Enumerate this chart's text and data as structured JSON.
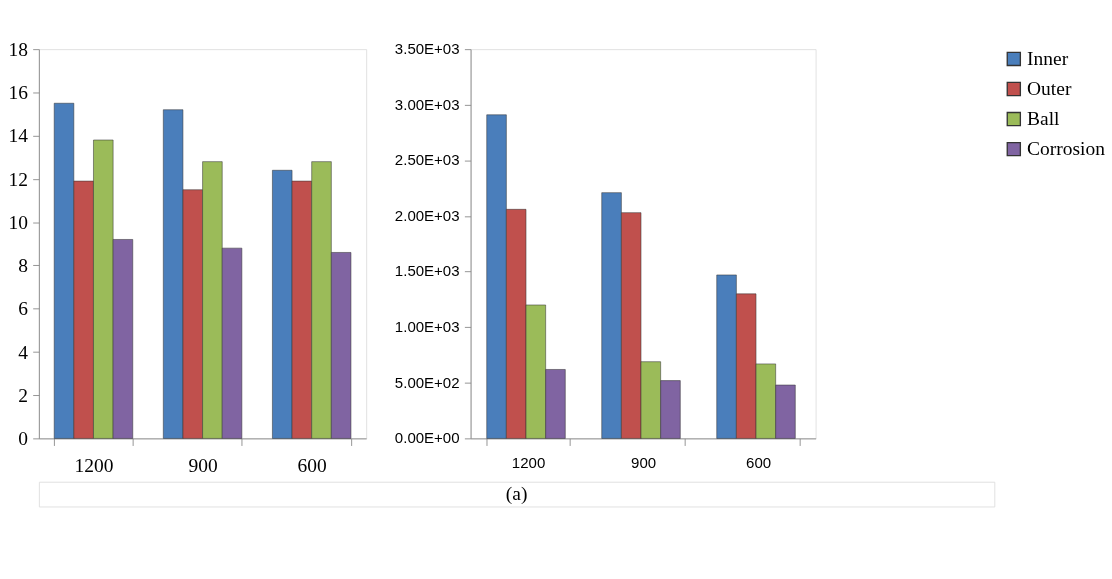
{
  "chart_data": [
    {
      "type": "bar",
      "categories": [
        "1200",
        "900",
        "600"
      ],
      "series": [
        {
          "name": "Inner",
          "color": "#4a7ebb",
          "values": [
            15.5,
            15.2,
            12.4
          ]
        },
        {
          "name": "Outer",
          "color": "#c0504d",
          "values": [
            11.9,
            11.5,
            11.9
          ]
        },
        {
          "name": "Ball",
          "color": "#9bbb59",
          "values": [
            13.8,
            12.8,
            12.8
          ]
        },
        {
          "name": "Corrosion",
          "color": "#8064a2",
          "values": [
            9.2,
            8.8,
            8.6
          ]
        }
      ],
      "ylim": [
        0,
        18
      ],
      "yticks": [
        0,
        2,
        4,
        6,
        8,
        10,
        12,
        14,
        16,
        18
      ],
      "legend": "top right"
    },
    {
      "type": "bar",
      "categories": [
        "1200",
        "900",
        "600"
      ],
      "series": [
        {
          "color": "#4a7ebb",
          "values": [
            2910,
            2210,
            1470
          ]
        },
        {
          "color": "#c0504d",
          "values": [
            2060,
            2030,
            1300
          ]
        },
        {
          "color": "#9bbb59",
          "values": [
            1200,
            690,
            670
          ]
        },
        {
          "color": "#8064a2",
          "values": [
            620,
            520,
            480
          ]
        }
      ],
      "ylim": [
        0,
        3500
      ],
      "yticks": [
        {
          "value": 0,
          "label": "0.00E+00"
        },
        {
          "value": 500,
          "label": "5.00E+02"
        },
        {
          "value": 1000,
          "label": "1.00E+03"
        },
        {
          "value": 1500,
          "label": "1.50E+03"
        },
        {
          "value": 2000,
          "label": "2.00E+03"
        },
        {
          "value": 2500,
          "label": "2.50E+03"
        },
        {
          "value": 3000,
          "label": "3.00E+03"
        },
        {
          "value": 3500,
          "label": "3.50E+03"
        }
      ],
      "annotations": [
        "(a)"
      ]
    }
  ]
}
